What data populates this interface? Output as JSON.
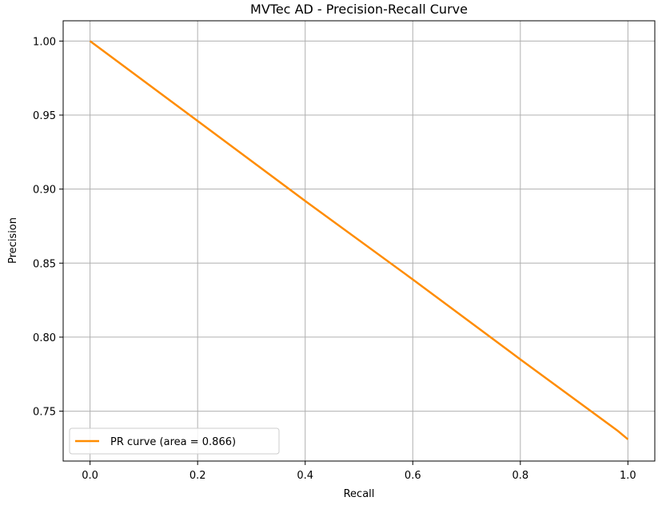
{
  "chart_data": {
    "type": "line",
    "title": "MVTec AD - Precision-Recall Curve",
    "xlabel": "Recall",
    "ylabel": "Precision",
    "xlim": [
      -0.05,
      1.05
    ],
    "ylim": [
      0.7163,
      1.0137
    ],
    "x_ticks": [
      0.0,
      0.2,
      0.4,
      0.6,
      0.8,
      1.0
    ],
    "x_tick_labels": [
      "0.0",
      "0.2",
      "0.4",
      "0.6",
      "0.8",
      "1.0"
    ],
    "y_ticks": [
      0.75,
      0.8,
      0.85,
      0.9,
      0.95,
      1.0
    ],
    "y_tick_labels": [
      "0.75",
      "0.80",
      "0.85",
      "0.90",
      "0.95",
      "1.00"
    ],
    "grid": true,
    "legend_position": "lower-left",
    "series": [
      {
        "name": "PR curve (area = 0.866)",
        "color": "#ff8c00",
        "x": [
          0.0,
          0.2,
          0.4,
          0.6,
          0.8,
          0.98,
          1.0
        ],
        "y": [
          1.0,
          0.946,
          0.892,
          0.839,
          0.785,
          0.737,
          0.731
        ]
      }
    ]
  }
}
